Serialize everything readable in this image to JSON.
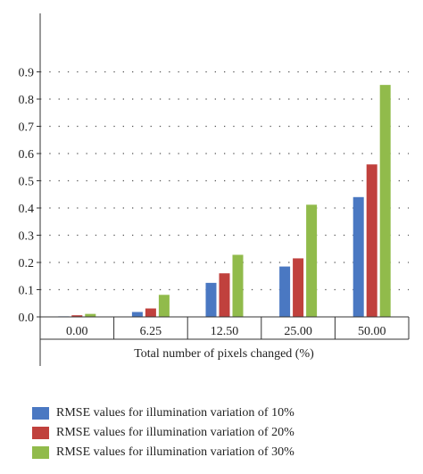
{
  "chart_data": {
    "type": "bar",
    "xlabel": "Total number of pixels changed (%)",
    "ylabel": "",
    "categories": [
      "0.00",
      "6.25",
      "12.50",
      "25.00",
      "50.00"
    ],
    "yticks": [
      "0.0",
      "0.1",
      "0.2",
      "0.3",
      "0.4",
      "0.5",
      "0.6",
      "0.7",
      "0.8",
      "0.9"
    ],
    "ylim": [
      0,
      1.0
    ],
    "grid": "horizontal dotted",
    "legend_position": "bottom",
    "series": [
      {
        "name": "RMSE values for illumination variation of 10%",
        "color": "#4a78c2",
        "values": [
          0.002,
          0.018,
          0.125,
          0.185,
          0.44
        ]
      },
      {
        "name": "RMSE values for illumination variation of 20%",
        "color": "#c0413d",
        "values": [
          0.006,
          0.031,
          0.16,
          0.215,
          0.56
        ]
      },
      {
        "name": "RMSE values for illumination variation of 30%",
        "color": "#91bb4b",
        "values": [
          0.011,
          0.081,
          0.228,
          0.412,
          0.852
        ]
      }
    ]
  }
}
